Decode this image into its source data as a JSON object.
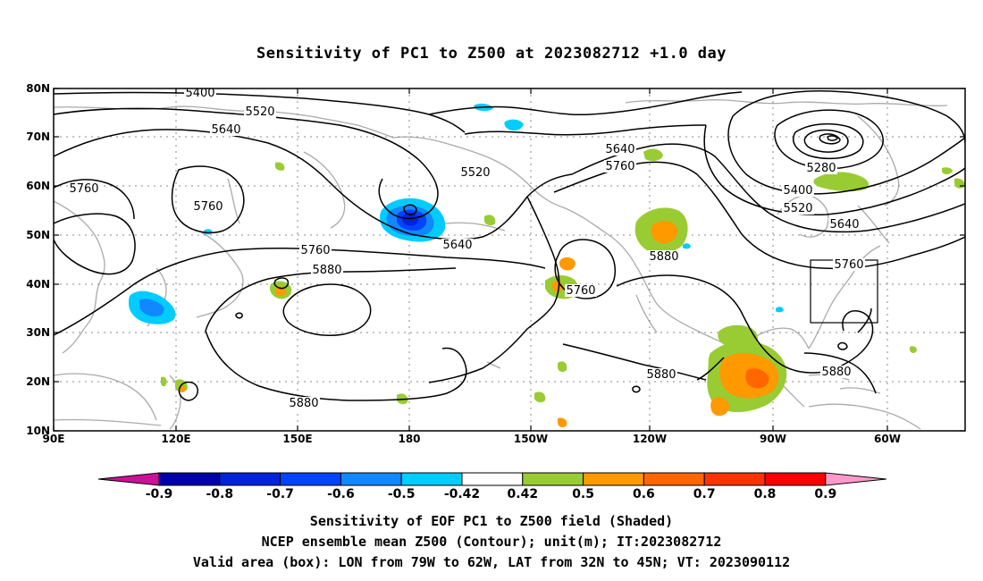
{
  "title": "Sensitivity of PC1 to Z500 at 2023082712 +1.0 day",
  "map": {
    "lat_ticks": [
      "80N",
      "70N",
      "60N",
      "50N",
      "40N",
      "30N",
      "20N",
      "10N"
    ],
    "lon_ticks": [
      "90E",
      "120E",
      "150E",
      "180",
      "150W",
      "120W",
      "90W",
      "60W"
    ],
    "box_color": "#000000",
    "grid": true,
    "coastline_color": "#aaaaaa"
  },
  "contours": {
    "unit": "m",
    "labels": [
      {
        "key": "l5400a",
        "value": "5400"
      },
      {
        "key": "l5520a",
        "value": "5520"
      },
      {
        "key": "l5640a",
        "value": "5640"
      },
      {
        "key": "l5760a",
        "value": "5760"
      },
      {
        "key": "l5760b",
        "value": "5760"
      },
      {
        "key": "l5520b",
        "value": "5520"
      },
      {
        "key": "l5640b",
        "value": "5640"
      },
      {
        "key": "l5760c",
        "value": "5760"
      },
      {
        "key": "l5880a",
        "value": "5880"
      },
      {
        "key": "l5640c",
        "value": "5640"
      },
      {
        "key": "l5760d",
        "value": "5760"
      },
      {
        "key": "l5760e",
        "value": "5760"
      },
      {
        "key": "l5880b",
        "value": "5880"
      },
      {
        "key": "l5280",
        "value": "5280"
      },
      {
        "key": "l5400b",
        "value": "5400"
      },
      {
        "key": "l5520c",
        "value": "5520"
      },
      {
        "key": "l5640d",
        "value": "5640"
      },
      {
        "key": "l5760f",
        "value": "5760"
      },
      {
        "key": "l5880c",
        "value": "5880"
      },
      {
        "key": "l5880d",
        "value": "5880"
      },
      {
        "key": "l5880e",
        "value": "5880"
      }
    ]
  },
  "colorbar": {
    "labels": [
      "-0.9",
      "-0.8",
      "-0.7",
      "-0.6",
      "-0.5",
      "-0.42",
      "0.42",
      "0.5",
      "0.6",
      "0.7",
      "0.8",
      "0.9"
    ],
    "colors": {
      "lt_-0.9": "#cc1199",
      "-0.9_-0.8": "#0000aa",
      "-0.8_-0.7": "#0022dd",
      "-0.7_-0.6": "#0044ff",
      "-0.6_-0.5": "#1188ff",
      "-0.5_-0.42": "#00ccff",
      "-0.42_0.42": "#ffffff",
      "0.42_0.5": "#99cc33",
      "0.5_0.6": "#ff9900",
      "0.6_0.7": "#ff6600",
      "0.7_0.8": "#ff3300",
      "0.8_0.9": "#ff0000",
      "gt_0.9": "#ff99cc"
    }
  },
  "captions": {
    "line1": "Sensitivity of EOF PC1 to Z500 field (Shaded)",
    "line2": "NCEP ensemble mean Z500 (Contour); unit(m); IT:2023082712",
    "line3": "Valid area (box): LON from 79W to 62W, LAT from 32N to 45N; VT: 2023090112"
  }
}
